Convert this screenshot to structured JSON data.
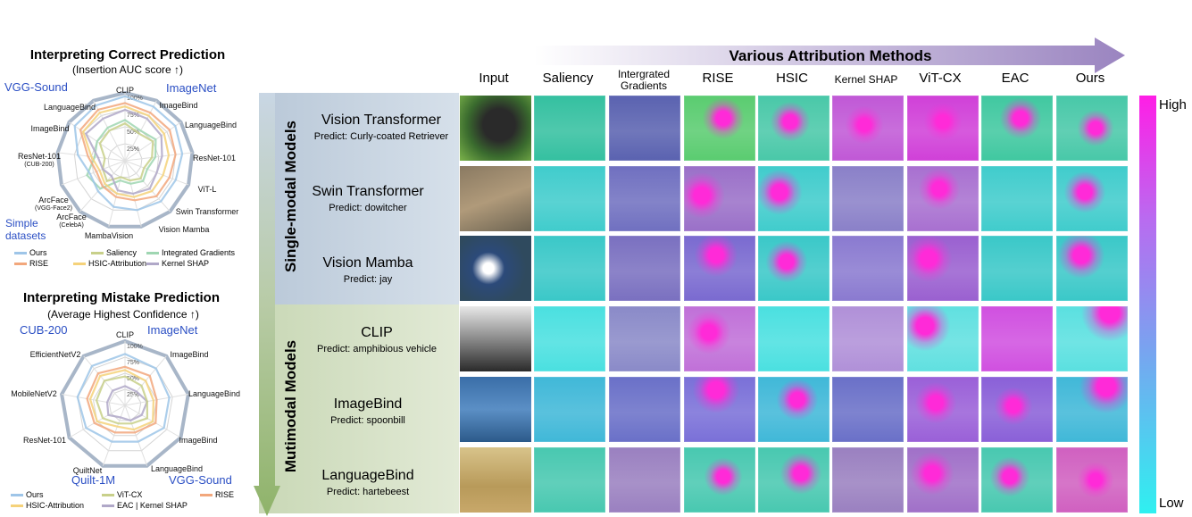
{
  "left_top": {
    "title": "Interpreting Correct Prediction",
    "subtitle": "(Insertion AUC score ↑)",
    "dataset_labels": [
      "VGG-Sound",
      "ImageNet",
      "Simple datasets"
    ],
    "axes": [
      {
        "label": "CLIP"
      },
      {
        "label": "ImageBind"
      },
      {
        "label": "LanguageBind"
      },
      {
        "label": "ResNet-101"
      },
      {
        "label": "ViT-L"
      },
      {
        "label": "Swin Transformer"
      },
      {
        "label": "Vision Mamba"
      },
      {
        "label": "MambaVision"
      },
      {
        "label": "ArcFace",
        "sub": "(CelebA)"
      },
      {
        "label": "ArcFace",
        "sub": "(VGG-Face2)"
      },
      {
        "label": "ResNet-101",
        "sub": "(CUB-200)"
      },
      {
        "label": "ImageBind"
      },
      {
        "label": "LanguageBind"
      }
    ],
    "ticks": [
      "25%",
      "50%",
      "75%",
      "100%"
    ],
    "legend": [
      {
        "name": "Ours",
        "color": "#9ec5e8"
      },
      {
        "name": "Saliency",
        "color": "#c8d08a"
      },
      {
        "name": "Integrated Gradients",
        "color": "#9fd6b2"
      },
      {
        "name": "RISE",
        "color": "#f2a77c"
      },
      {
        "name": "HSIC-Attribution",
        "color": "#f5d27a"
      },
      {
        "name": "Kernel SHAP",
        "color": "#b0a8c8"
      }
    ]
  },
  "left_bottom": {
    "title": "Interpreting Mistake Prediction",
    "subtitle": "(Average Highest Confidence ↑)",
    "dataset_labels": [
      "CUB-200",
      "ImageNet",
      "Quilt-1M",
      "VGG-Sound"
    ],
    "axes": [
      {
        "label": "CLIP"
      },
      {
        "label": "ImageBind"
      },
      {
        "label": "LanguageBind"
      },
      {
        "label": "ImageBind"
      },
      {
        "label": "LanguageBind"
      },
      {
        "label": "QuiltNet"
      },
      {
        "label": "ResNet-101"
      },
      {
        "label": "MobileNetV2"
      },
      {
        "label": "EfficientNetV2"
      }
    ],
    "ticks": [
      "25%",
      "50%",
      "75%",
      "100%"
    ],
    "legend": [
      {
        "name": "Ours",
        "color": "#9ec5e8"
      },
      {
        "name": "ViT-CX",
        "color": "#c8d08a"
      },
      {
        "name": "RISE",
        "color": "#f2a77c"
      },
      {
        "name": "HSIC-Attribution",
        "color": "#f5d27a"
      },
      {
        "name": "EAC | Kernel SHAP",
        "color": "#b0a8c8"
      }
    ]
  },
  "grid": {
    "banner": "Various Attribution Methods",
    "columns": [
      "Input",
      "Saliency",
      "Intergrated Gradients",
      "RISE",
      "HSIC",
      "Kernel SHAP",
      "ViT-CX",
      "EAC",
      "Ours"
    ],
    "groups": [
      "Single-modal Models",
      "Mutimodal Models"
    ],
    "rows": [
      {
        "model": "Vision Transformer",
        "predict": "Predict: Curly-coated Retriever"
      },
      {
        "model": "Swin Transformer",
        "predict": "Predict: dowitcher"
      },
      {
        "model": "Vision Mamba",
        "predict": "Predict: jay"
      },
      {
        "model": "CLIP",
        "predict": "Predict: amphibious vehicle"
      },
      {
        "model": "ImageBind",
        "predict": "Predict: spoonbill"
      },
      {
        "model": "LanguageBind",
        "predict": "Predict: hartebeest"
      }
    ],
    "colorbar": {
      "high": "High",
      "low": "Low"
    }
  }
}
